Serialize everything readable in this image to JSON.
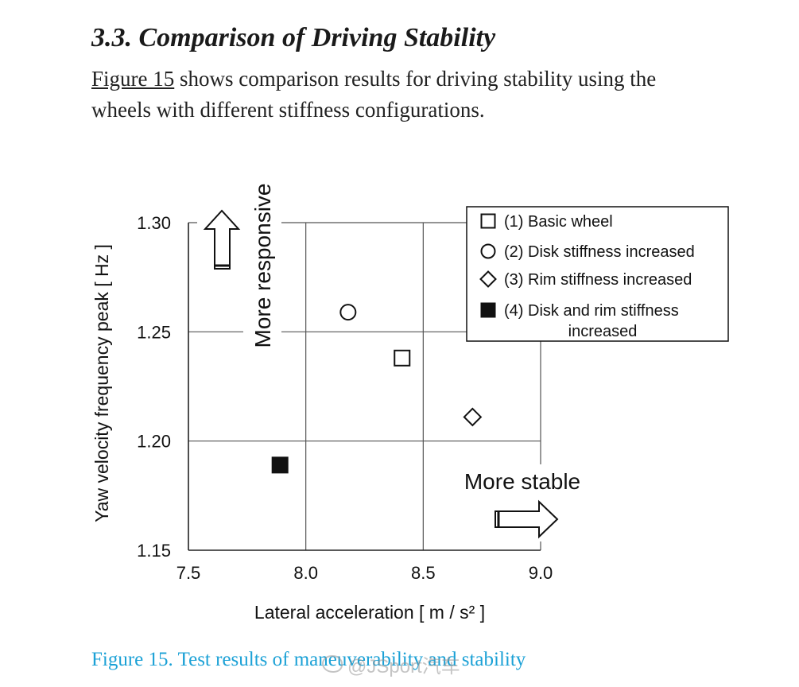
{
  "section": {
    "title": "3.3. Comparison of Driving Stability"
  },
  "paragraph": {
    "link_text": "Figure 15",
    "line1_rest": " shows comparison results for driving stability using the",
    "line2": "wheels with different stiffness configurations."
  },
  "caption": {
    "text": "Figure 15. Test results of maneuverability and stability",
    "color": "#1ba1d6"
  },
  "watermark": {
    "text": "@JSport汽车"
  },
  "chart_data": {
    "type": "scatter",
    "xlabel": "Lateral acceleration [ m / s² ]",
    "ylabel": "Yaw velocity frequency peak  [ Hz ]",
    "xlim": [
      7.5,
      9.0
    ],
    "ylim": [
      1.15,
      1.3
    ],
    "x_ticks": [
      "7.5",
      "8.0",
      "8.5",
      "9.0"
    ],
    "y_ticks": [
      "1.15",
      "1.20",
      "1.25",
      "1.30"
    ],
    "grid": true,
    "legend_position": "top-right",
    "series": [
      {
        "name": "(1) Basic wheel",
        "marker": "open-square",
        "x": 8.41,
        "y": 1.238
      },
      {
        "name": "(2) Disk stiffness increased",
        "marker": "open-circle",
        "x": 8.18,
        "y": 1.259
      },
      {
        "name": "(3) Rim stiffness increased",
        "marker": "open-diamond",
        "x": 8.71,
        "y": 1.211
      },
      {
        "name": "(4) Disk and rim stiffness increased",
        "marker": "filled-square",
        "x": 7.89,
        "y": 1.189
      }
    ],
    "annotations": {
      "responsive": "More responsive",
      "stable": "More stable"
    }
  }
}
